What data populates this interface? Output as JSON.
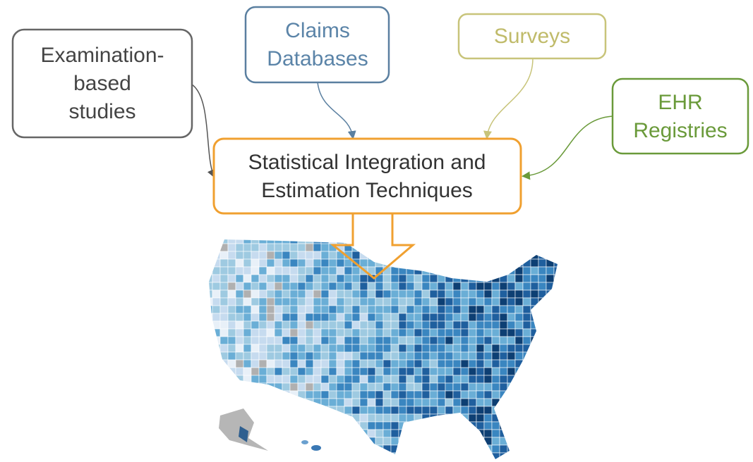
{
  "nodes": [
    {
      "label": [
        "Examination-",
        "based",
        "studies"
      ]
    },
    {
      "label": [
        "Claims",
        "Databases"
      ]
    },
    {
      "label": [
        "Surveys"
      ]
    },
    {
      "label": [
        "EHR",
        "Registries"
      ]
    },
    {
      "label": [
        "Statistical Integration and",
        "Estimation Techniques"
      ]
    }
  ]
}
